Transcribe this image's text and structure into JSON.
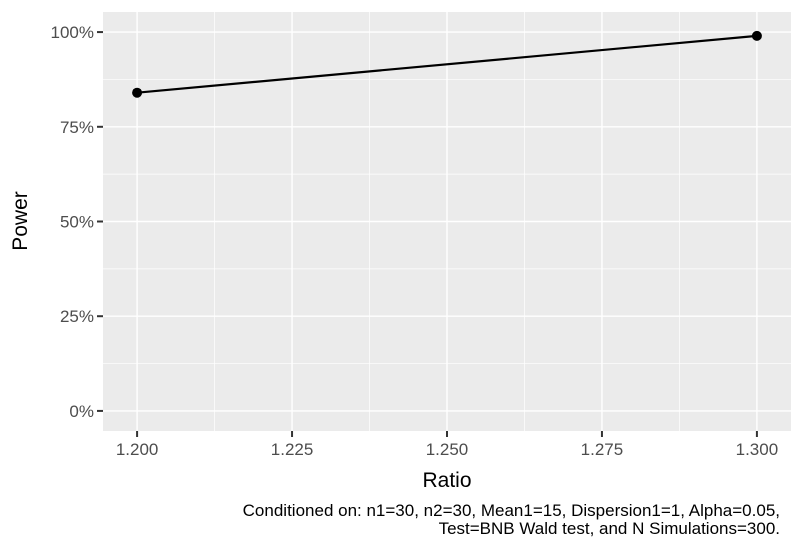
{
  "figure": {
    "background": "#FFFFFF"
  },
  "chart_data": {
    "type": "line",
    "title": "",
    "xlabel": "Ratio",
    "ylabel": "Power",
    "caption_line1": "Conditioned on: n1=30, n2=30, Mean1=15, Dispersion1=1, Alpha=0.05,",
    "caption_line2": "Test=BNB Wald test, and N Simulations=300.",
    "y_unit": "percent",
    "series": [
      {
        "name": "Power",
        "x": [
          1.2,
          1.3
        ],
        "y": [
          84,
          99
        ]
      }
    ],
    "x_ticks": {
      "values": [
        1.2,
        1.225,
        1.25,
        1.275,
        1.3
      ],
      "labels": [
        "1.200",
        "1.225",
        "1.250",
        "1.275",
        "1.300"
      ]
    },
    "y_ticks": {
      "values": [
        0,
        25,
        50,
        75,
        100
      ],
      "labels": [
        "0%",
        "25%",
        "50%",
        "75%",
        "100%"
      ]
    },
    "x_minor": [
      1.2125,
      1.2375,
      1.2625,
      1.2875
    ],
    "y_minor": [
      12.5,
      37.5,
      62.5,
      87.5
    ],
    "xlim": [
      1.1945,
      1.3055
    ],
    "ylim": [
      -5.3,
      105.3
    ],
    "grid": "on",
    "legend": "none",
    "theme": {
      "panel_bg": "#EBEBEB",
      "grid_color": "#FFFFFF",
      "line_color": "#000000",
      "point_color": "#000000",
      "tick_color": "#333333",
      "tick_label_color": "#4D4D4D",
      "axis_title_color": "#000000",
      "caption_color": "#000000"
    }
  }
}
